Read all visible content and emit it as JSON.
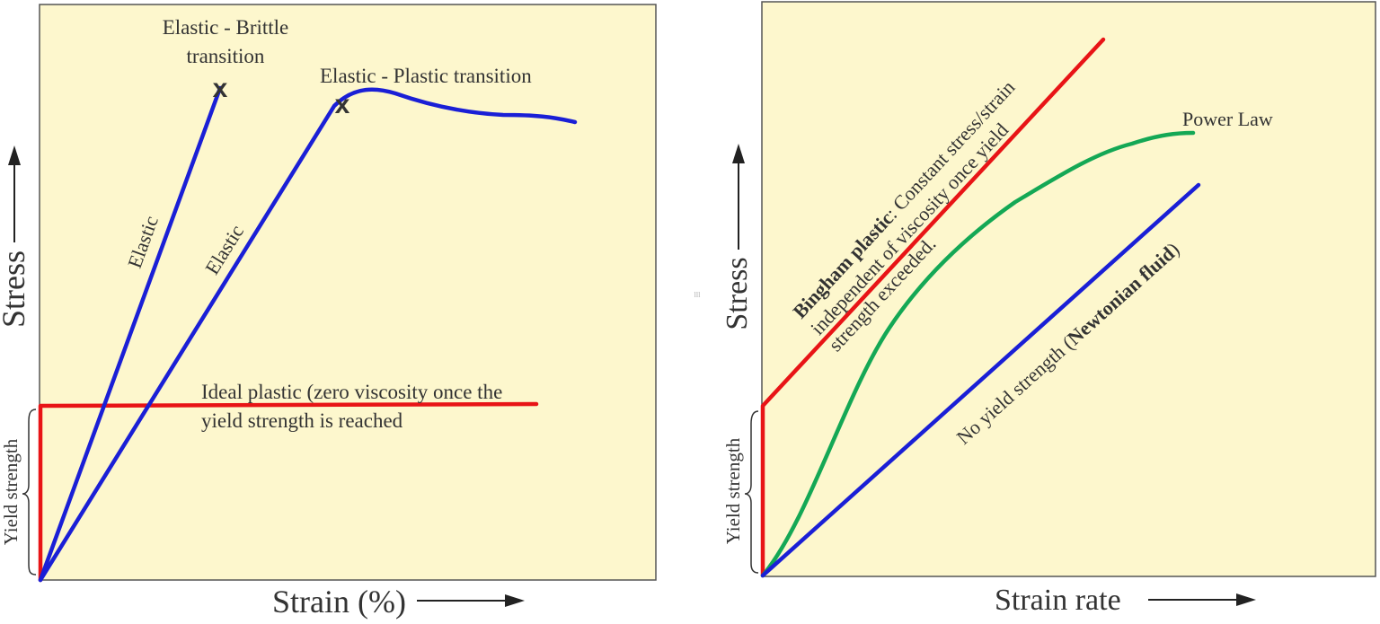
{
  "colors": {
    "panel_background": "#fdf7cd",
    "brittle_curve": "#1a1fd6",
    "plastic_curve": "#1a1fd6",
    "ideal_plastic": "#e81416",
    "bingham": "#e81416",
    "power_law": "#14a855",
    "newtonian": "#1a1fd6"
  },
  "left_panel": {
    "x_label": "Strain (%)",
    "y_label": "Stress",
    "yield_label": "Yield strength",
    "brittle_transition_line1": "Elastic - Brittle",
    "brittle_transition_line2": "transition",
    "plastic_transition": "Elastic - Plastic transition",
    "elastic_label_1": "Elastic",
    "elastic_label_2": "Elastic",
    "ideal_plastic_line1": "Ideal plastic (zero viscosity once the",
    "ideal_plastic_line2": "yield strength is reached",
    "marker_symbol": "x"
  },
  "right_panel": {
    "x_label": "Strain rate",
    "y_label": "Stress",
    "yield_label": "Yield strength",
    "power_law": "Power Law",
    "bingham_bold": "Bingham plastic",
    "bingham_rest": ": Constant stress/strain",
    "bingham_line2": "independent of viscosity once yield",
    "bingham_line3": "strength exceeded.",
    "newtonian_prefix": "No yield strength (",
    "newtonian_bold": "Newtonian fluid",
    "newtonian_suffix": ")"
  },
  "separator_mark": "lll"
}
